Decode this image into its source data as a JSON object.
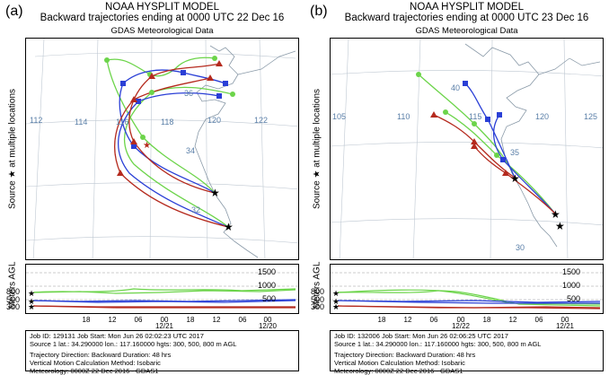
{
  "colors": {
    "red": "#b52a1e",
    "blue": "#2a3fd6",
    "green": "#6cd44a",
    "coast": "#8a9aa8",
    "grid": "#bfc8d2",
    "gridlabel": "#5a7fa8"
  },
  "panels": [
    {
      "label": "(a)",
      "title1": "NOAA HYSPLIT MODEL",
      "title2": "Backward trajectories ending at 0000 UTC 22 Dec 16",
      "title3": "GDAS Meteorological Data",
      "side_label": "Source ★ at multiple locations",
      "lon_labels": [
        "112",
        "114",
        "116",
        "118",
        "120",
        "122"
      ],
      "lat_labels": [
        "36",
        "34",
        "32"
      ],
      "height_label": "Meters AGL",
      "height_ticks": [
        "1500",
        "1000",
        "500"
      ],
      "height_start": [
        "800",
        "500",
        "300"
      ],
      "time_ticks": [
        "18",
        "12",
        "06",
        "00",
        "18",
        "12",
        "06",
        "00"
      ],
      "date_ticks": [
        "12/21",
        "12/20"
      ],
      "info": [
        "Job ID: 129131          Job Start: Mon Jun 26 02:02:23 UTC 2017",
        "Source 1 lat.: 34.290000  lon.: 117.160000  hgts: 300, 500, 800 m AGL",
        "Trajectory Direction: Backward     Duration: 48 hrs",
        "Vertical Motion Calculation Method:     Isobaric",
        "Meteorology: 0000Z 22 Dec 2016 - GDAS1"
      ]
    },
    {
      "label": "(b)",
      "title1": "NOAA HYSPLIT MODEL",
      "title2": "Backward trajectories ending at 0000 UTC 23 Dec 16",
      "title3": "GDAS Meteorological Data",
      "side_label": "Source ★ at multiple locations",
      "lon_labels": [
        "105",
        "110",
        "115",
        "120",
        "125"
      ],
      "lat_labels": [
        "40",
        "35",
        "30"
      ],
      "height_label": "Meters AGL",
      "height_ticks": [
        "1500",
        "1000",
        "500"
      ],
      "height_start": [
        "800",
        "500",
        "300"
      ],
      "time_ticks": [
        "18",
        "12",
        "06",
        "00",
        "18",
        "12",
        "06",
        "00"
      ],
      "date_ticks": [
        "12/22",
        "12/21"
      ],
      "info": [
        "Job ID: 132006          Job Start: Mon Jun 26 02:06:25 UTC 2017",
        "Source 1 lat.: 34.290000  lon.: 117.160000  hgts: 300, 500, 800 m AGL",
        "Trajectory Direction: Backward     Duration: 48 hrs",
        "Vertical Motion Calculation Method:     Isobaric",
        "Meteorology: 0000Z 22 Dec 2016 - GDAS1"
      ]
    }
  ]
}
